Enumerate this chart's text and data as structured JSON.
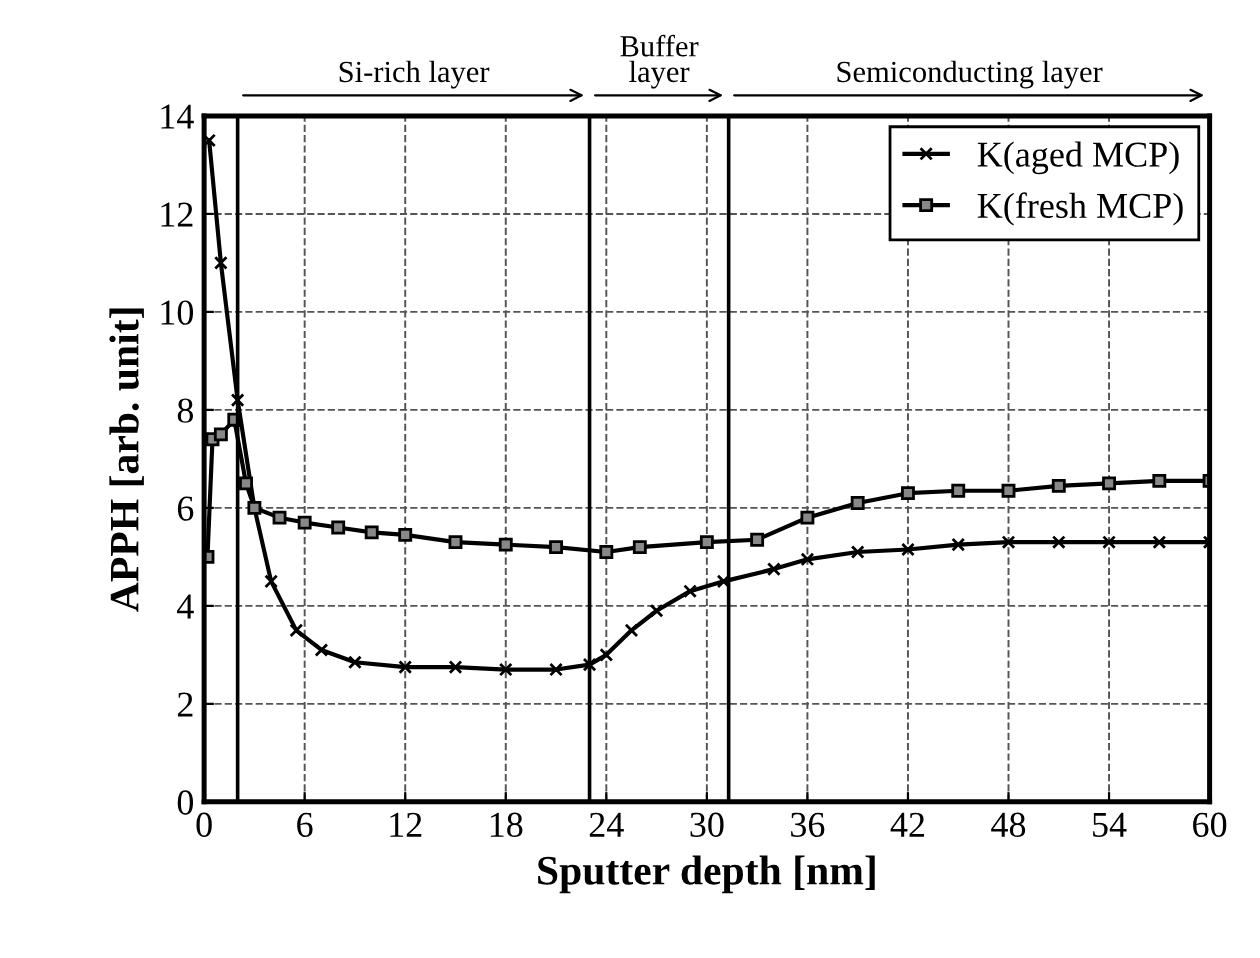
{
  "chart_data": {
    "type": "line",
    "xlabel": "Sputter depth [nm]",
    "ylabel": "APPH [arb. unit]",
    "xlim": [
      0,
      60
    ],
    "xticks": [
      0,
      6,
      12,
      18,
      24,
      30,
      36,
      42,
      48,
      54,
      60
    ],
    "ylim": [
      0,
      14
    ],
    "yticks": [
      0,
      2,
      4,
      6,
      8,
      10,
      12,
      14
    ],
    "grid": true,
    "legend": "top right",
    "series": [
      {
        "name": "K(aged MCP)",
        "color": "#000000",
        "marker": "cross",
        "x": [
          0.3,
          1,
          2,
          3,
          4,
          5.5,
          7,
          9,
          12,
          15,
          18,
          21,
          23,
          24,
          25.5,
          27,
          29,
          31,
          34,
          36,
          39,
          42,
          45,
          48,
          51,
          54,
          57,
          60
        ],
        "values": [
          13.5,
          11,
          8.2,
          6,
          4.5,
          3.5,
          3.1,
          2.85,
          2.75,
          2.75,
          2.7,
          2.7,
          2.8,
          3,
          3.5,
          3.9,
          4.3,
          4.5,
          4.75,
          4.95,
          5.1,
          5.15,
          5.25,
          5.3,
          5.3,
          5.3,
          5.3,
          5.3
        ]
      },
      {
        "name": "K(fresh MCP)",
        "color": "#000000",
        "marker": "square",
        "x": [
          0.2,
          0.5,
          1,
          1.8,
          2.5,
          3,
          4.5,
          6,
          8,
          10,
          12,
          15,
          18,
          21,
          24,
          26,
          30,
          33,
          36,
          39,
          42,
          45,
          48,
          51,
          54,
          57,
          60
        ],
        "values": [
          5,
          7.4,
          7.5,
          7.8,
          6.5,
          6,
          5.8,
          5.7,
          5.6,
          5.5,
          5.45,
          5.3,
          5.25,
          5.2,
          5.1,
          5.2,
          5.3,
          5.35,
          5.8,
          6.1,
          6.3,
          6.35,
          6.35,
          6.45,
          6.5,
          6.55,
          6.55
        ]
      }
    ],
    "ref_lines": [
      {
        "axis": "x",
        "value": 2
      },
      {
        "axis": "x",
        "value": 23
      },
      {
        "axis": "x",
        "value": 31.3
      }
    ],
    "annotations": [
      "Si-rich layer",
      "Buffer\nlayer",
      "Semiconducting layer"
    ]
  }
}
